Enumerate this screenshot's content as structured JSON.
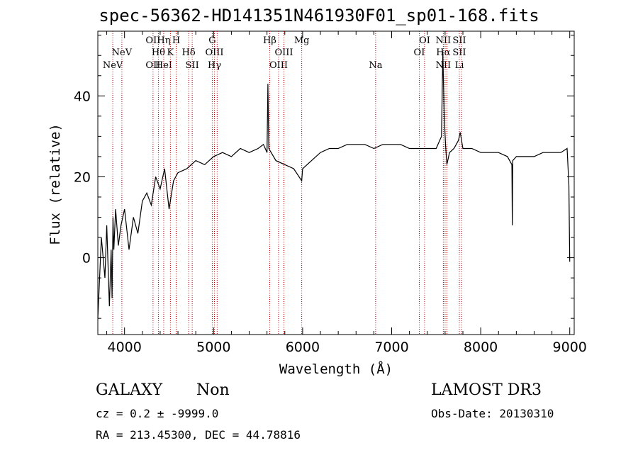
{
  "chart_data": {
    "type": "line",
    "title": "spec-56362-HD141351N461930F01_sp01-168.fits",
    "xlabel": "Wavelength (Å)",
    "ylabel": "Flux (relative)",
    "xlim": [
      3700,
      9050
    ],
    "ylim": [
      -19,
      56
    ],
    "xticks": [
      4000,
      5000,
      6000,
      7000,
      8000,
      9000
    ],
    "yticks": [
      0,
      20,
      40
    ],
    "series": [
      {
        "name": "spectrum",
        "x": [
          3700,
          3740,
          3780,
          3800,
          3830,
          3850,
          3860,
          3870,
          3880,
          3900,
          3930,
          3960,
          4000,
          4050,
          4100,
          4150,
          4200,
          4250,
          4300,
          4350,
          4400,
          4450,
          4500,
          4550,
          4600,
          4700,
          4800,
          4900,
          5000,
          5100,
          5200,
          5300,
          5400,
          5500,
          5560,
          5600,
          5610,
          5620,
          5700,
          5800,
          5900,
          5990,
          6000,
          6100,
          6200,
          6300,
          6400,
          6500,
          6600,
          6700,
          6800,
          6900,
          7000,
          7100,
          7200,
          7300,
          7400,
          7500,
          7560,
          7575,
          7590,
          7605,
          7620,
          7650,
          7700,
          7750,
          7770,
          7800,
          7900,
          8000,
          8100,
          8200,
          8300,
          8350,
          8355,
          8360,
          8400,
          8500,
          8600,
          8700,
          8800,
          8900,
          8970,
          8990,
          9000
        ],
        "values": [
          -15,
          5,
          -5,
          8,
          -12,
          2,
          -10,
          10,
          2,
          12,
          3,
          8,
          12,
          2,
          10,
          6,
          14,
          16,
          13,
          20,
          17,
          22,
          12,
          19,
          21,
          22,
          24,
          23,
          25,
          26,
          25,
          27,
          26,
          27,
          28,
          26,
          43,
          27,
          24,
          23,
          22,
          19,
          22,
          24,
          26,
          27,
          27,
          28,
          28,
          28,
          27,
          28,
          28,
          28,
          27,
          27,
          27,
          27,
          30,
          51,
          35,
          28,
          23,
          26,
          27,
          29,
          31,
          27,
          27,
          26,
          26,
          26,
          25,
          23,
          8,
          24,
          25,
          25,
          25,
          26,
          26,
          26,
          27,
          18,
          -1
        ]
      }
    ],
    "line_markers": [
      {
        "wl": 3868,
        "labels": [
          "NeV"
        ],
        "row": 3
      },
      {
        "wl": 3970,
        "labels": [
          "NeV"
        ],
        "row": 2
      },
      {
        "wl": 4320,
        "labels": [
          "OII",
          "OII"
        ],
        "rows": [
          1,
          3
        ]
      },
      {
        "wl": 4380,
        "labels": [
          "Hθ"
        ],
        "row": 2
      },
      {
        "wl": 4440,
        "labels": [
          "Hη",
          "HeI"
        ],
        "rows": [
          1,
          3
        ]
      },
      {
        "wl": 4515,
        "labels": [
          "K"
        ],
        "row": 2
      },
      {
        "wl": 4580,
        "labels": [
          "H"
        ],
        "row": 1
      },
      {
        "wl": 4720,
        "labels": [
          "Hδ"
        ],
        "row": 2
      },
      {
        "wl": 4760,
        "labels": [
          "SII"
        ],
        "row": 3
      },
      {
        "wl": 4985,
        "labels": [
          "G"
        ],
        "row": 1
      },
      {
        "wl": 5010,
        "labels": [
          "OIII",
          "Hγ"
        ],
        "rows": [
          2,
          3
        ]
      },
      {
        "wl": 5040,
        "labels": [],
        "row": 0
      },
      {
        "wl": 5630,
        "labels": [
          "Hβ"
        ],
        "row": 1
      },
      {
        "wl": 5730,
        "labels": [
          "OIII"
        ],
        "rows": [
          3
        ]
      },
      {
        "wl": 5790,
        "labels": [
          "OIII"
        ],
        "rows": [
          2
        ]
      },
      {
        "wl": 5990,
        "labels": [
          "Mg"
        ],
        "row": 1
      },
      {
        "wl": 6820,
        "labels": [
          "Na"
        ],
        "row": 3
      },
      {
        "wl": 7310,
        "labels": [
          "OI"
        ],
        "row": 2
      },
      {
        "wl": 7370,
        "labels": [
          "OI"
        ],
        "row": 1
      },
      {
        "wl": 7580,
        "labels": [
          "NII",
          "Hα",
          "NII"
        ],
        "rows": [
          1,
          2,
          3
        ]
      },
      {
        "wl": 7600,
        "labels": [],
        "row": 0
      },
      {
        "wl": 7620,
        "labels": [],
        "row": 0
      },
      {
        "wl": 7760,
        "labels": [
          "SII",
          "SII",
          "Li"
        ],
        "rows": [
          1,
          2,
          3
        ]
      },
      {
        "wl": 7785,
        "labels": [],
        "row": 0
      }
    ]
  },
  "info": {
    "class": "GALAXY",
    "subclass": "Non",
    "survey": "LAMOST DR3",
    "cz": "cz = 0.2 ± -9999.0",
    "obs_date": "Obs-Date: 20130310",
    "radec": "RA = 213.45300, DEC =  44.78816"
  }
}
